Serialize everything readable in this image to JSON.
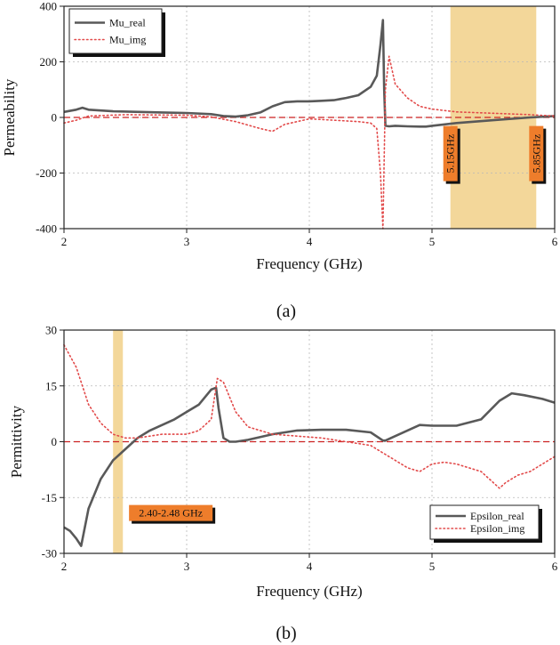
{
  "chart_data": [
    {
      "type": "line",
      "caption": "(a)",
      "xlabel": "Frequency (GHz)",
      "ylabel": "Permeability",
      "xlim": [
        2,
        6
      ],
      "ylim": [
        -400,
        400
      ],
      "xticks": [
        2,
        3,
        4,
        5,
        6
      ],
      "yticks": [
        -400,
        -200,
        0,
        200,
        400
      ],
      "grid": true,
      "legend_position": "top-left",
      "reference_line": {
        "y": 0,
        "color": "#cc2222",
        "style": "dashed"
      },
      "bands": [
        {
          "from": 5.15,
          "to": 5.85,
          "color": "#f3d79a"
        }
      ],
      "band_labels": [
        {
          "text": "5.15GHz",
          "x": 5.15,
          "y": -130
        },
        {
          "text": "5.85GHz",
          "x": 5.85,
          "y": -130
        }
      ],
      "series": [
        {
          "name": "Mu_real",
          "color": "#595959",
          "style": "solid",
          "x": [
            2,
            2.1,
            2.15,
            2.2,
            2.4,
            2.8,
            3.0,
            3.2,
            3.3,
            3.4,
            3.5,
            3.6,
            3.7,
            3.8,
            3.9,
            4.0,
            4.1,
            4.2,
            4.3,
            4.4,
            4.5,
            4.55,
            4.58,
            4.6,
            4.61,
            4.62,
            4.65,
            4.7,
            4.8,
            4.9,
            4.95,
            5.0,
            5.2,
            5.5,
            5.8,
            6.0
          ],
          "y": [
            20,
            28,
            35,
            28,
            22,
            18,
            16,
            12,
            5,
            3,
            8,
            18,
            40,
            55,
            58,
            58,
            60,
            62,
            70,
            80,
            110,
            150,
            260,
            350,
            100,
            -30,
            -32,
            -30,
            -32,
            -33,
            -33,
            -30,
            -20,
            -10,
            0,
            5
          ]
        },
        {
          "name": "Mu_img",
          "color": "#e24a4a",
          "style": "dotted",
          "x": [
            2,
            2.1,
            2.2,
            2.5,
            3.0,
            3.2,
            3.4,
            3.6,
            3.7,
            3.8,
            4.0,
            4.2,
            4.4,
            4.5,
            4.55,
            4.58,
            4.6,
            4.62,
            4.65,
            4.7,
            4.8,
            4.9,
            5.0,
            5.2,
            5.5,
            5.8,
            6.0
          ],
          "y": [
            -20,
            -10,
            5,
            10,
            8,
            2,
            -15,
            -40,
            -50,
            -25,
            -5,
            -10,
            -15,
            -20,
            -40,
            -200,
            -400,
            100,
            220,
            120,
            70,
            40,
            30,
            20,
            15,
            10,
            5
          ]
        }
      ]
    },
    {
      "type": "line",
      "caption": "(b)",
      "xlabel": "Frequency (GHz)",
      "ylabel": "Permittivity",
      "xlim": [
        2,
        6
      ],
      "ylim": [
        -30,
        30
      ],
      "xticks": [
        2,
        3,
        4,
        5,
        6
      ],
      "yticks": [
        -30,
        -15,
        0,
        15,
        30
      ],
      "grid": true,
      "legend_position": "bottom-right",
      "reference_line": {
        "y": 0,
        "color": "#cc2222",
        "style": "dashed"
      },
      "bands": [
        {
          "from": 2.4,
          "to": 2.48,
          "color": "#f3d79a"
        }
      ],
      "band_labels": [
        {
          "text": "2.40-2.48 GHz",
          "x": 2.53,
          "y": -17
        }
      ],
      "series": [
        {
          "name": "Epsilon_real",
          "color": "#595959",
          "style": "solid",
          "x": [
            2,
            2.05,
            2.1,
            2.14,
            2.2,
            2.3,
            2.4,
            2.5,
            2.6,
            2.7,
            2.8,
            2.9,
            3.0,
            3.1,
            3.2,
            3.24,
            3.26,
            3.3,
            3.35,
            3.4,
            3.5,
            3.7,
            3.9,
            4.1,
            4.3,
            4.5,
            4.6,
            4.62,
            4.7,
            4.8,
            4.9,
            5.0,
            5.2,
            5.4,
            5.55,
            5.65,
            5.75,
            5.9,
            6.0
          ],
          "y": [
            -23,
            -24,
            -26,
            -28,
            -18,
            -10,
            -5,
            -2,
            1,
            3,
            4.5,
            6,
            8,
            10,
            14,
            14.5,
            9,
            1,
            0,
            0,
            0.5,
            2,
            3,
            3.2,
            3.2,
            2.5,
            0.3,
            0.3,
            1.5,
            3,
            4.5,
            4.3,
            4.3,
            6,
            11,
            13,
            12.5,
            11.5,
            10.5
          ]
        },
        {
          "name": "Epsilon_img",
          "color": "#e24a4a",
          "style": "dotted",
          "x": [
            2,
            2.05,
            2.1,
            2.15,
            2.2,
            2.3,
            2.4,
            2.5,
            2.6,
            2.7,
            2.8,
            3.0,
            3.1,
            3.2,
            3.25,
            3.3,
            3.4,
            3.5,
            3.7,
            3.9,
            4.1,
            4.3,
            4.5,
            4.6,
            4.7,
            4.8,
            4.9,
            5.0,
            5.1,
            5.2,
            5.4,
            5.5,
            5.55,
            5.6,
            5.7,
            5.8,
            5.9,
            6.0
          ],
          "y": [
            26,
            23,
            20,
            15,
            10,
            5,
            2,
            1,
            1,
            1.5,
            2,
            2,
            3,
            6,
            17,
            16,
            8,
            4,
            2,
            1.5,
            1,
            0,
            -1,
            -3,
            -5,
            -7,
            -8,
            -6,
            -5.5,
            -6,
            -8,
            -11,
            -12.5,
            -11,
            -9,
            -8,
            -6,
            -4
          ]
        }
      ]
    }
  ]
}
